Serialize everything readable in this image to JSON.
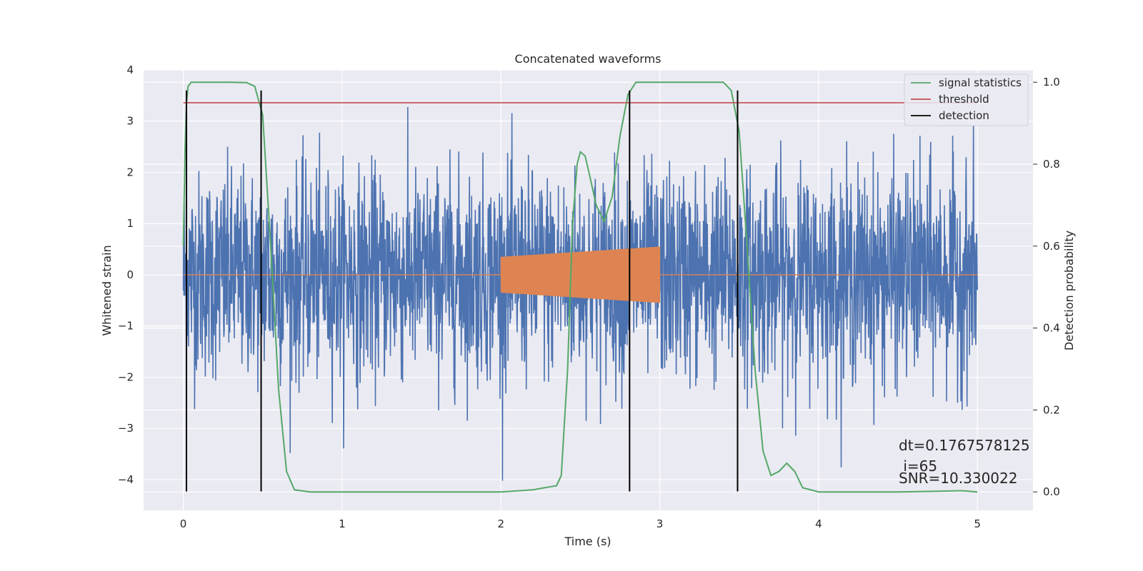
{
  "chart_data": {
    "type": "line",
    "title": "Concatenated waveforms",
    "xlabel": "Time (s)",
    "ylabel_left": "Whitened strain",
    "ylabel_right": "Detection probability",
    "xlim": [
      -0.25,
      5.35
    ],
    "ylim_left": [
      -4.6,
      4.0
    ],
    "ylim_right": [
      -0.045,
      1.03
    ],
    "x_ticks": [
      "0",
      "1",
      "2",
      "3",
      "4",
      "5"
    ],
    "y_left_ticks": [
      "4",
      "3",
      "2",
      "1",
      "0",
      "−1",
      "−2",
      "−3",
      "−4"
    ],
    "y_right_ticks": [
      "1.0",
      "0.8",
      "0.6",
      "0.4",
      "0.2",
      "0.0"
    ],
    "grid": true,
    "legend_position": "top-right",
    "legend": [
      "signal statistics",
      "threshold",
      "detection"
    ],
    "colors": {
      "strain": "#4c72b0",
      "template": "#dd8452",
      "statistic": "#55a868",
      "threshold": "#c44e52",
      "detection": "#000000",
      "background": "#eaeaf2"
    },
    "series": [
      {
        "name": "",
        "kind": "whitened strain (noise)",
        "x_range": [
          0,
          5
        ],
        "approx_std": 1.0,
        "min": -4.3,
        "max": 3.3
      },
      {
        "name": "",
        "kind": "injected template",
        "x": [
          0,
          2.0,
          2.0,
          3.0,
          3.0,
          5.0
        ],
        "amplitude": [
          0,
          0,
          0.35,
          0.55,
          0,
          0
        ]
      },
      {
        "name": "signal statistics",
        "axis": "right",
        "x": [
          0.0,
          0.01,
          0.02,
          0.03,
          0.05,
          0.08,
          0.12,
          0.2,
          0.3,
          0.4,
          0.45,
          0.5,
          0.55,
          0.6,
          0.65,
          0.7,
          0.8,
          1.0,
          1.5,
          2.0,
          2.2,
          2.3,
          2.35,
          2.38,
          2.42,
          2.45,
          2.48,
          2.5,
          2.53,
          2.56,
          2.6,
          2.65,
          2.7,
          2.75,
          2.8,
          2.85,
          2.9,
          3.0,
          3.2,
          3.4,
          3.45,
          3.5,
          3.55,
          3.6,
          3.65,
          3.7,
          3.75,
          3.8,
          3.85,
          3.9,
          4.0,
          4.2,
          4.5,
          4.8,
          4.9,
          5.0
        ],
        "y": [
          0.6,
          0.82,
          0.95,
          0.99,
          1.0,
          1.0,
          1.0,
          1.0,
          1.0,
          0.999,
          0.99,
          0.92,
          0.6,
          0.25,
          0.05,
          0.005,
          0.0,
          0.0,
          0.0,
          0.0,
          0.005,
          0.012,
          0.015,
          0.04,
          0.3,
          0.65,
          0.8,
          0.83,
          0.82,
          0.77,
          0.7,
          0.66,
          0.72,
          0.87,
          0.97,
          1.0,
          1.0,
          1.0,
          1.0,
          1.0,
          0.98,
          0.88,
          0.6,
          0.3,
          0.1,
          0.04,
          0.05,
          0.07,
          0.05,
          0.01,
          0.0,
          0.0,
          0.0,
          0.002,
          0.003,
          0.0
        ]
      },
      {
        "name": "threshold",
        "axis": "right",
        "x": [
          0,
          5
        ],
        "y": [
          0.95,
          0.95
        ]
      },
      {
        "name": "detection",
        "kind": "vertical lines",
        "x": [
          0.02,
          0.49,
          2.81,
          3.49
        ]
      }
    ],
    "annotation": {
      "line1": "dt=0.1767578125",
      "line2": " i=65",
      "line3": "SNR=10.330022"
    }
  }
}
